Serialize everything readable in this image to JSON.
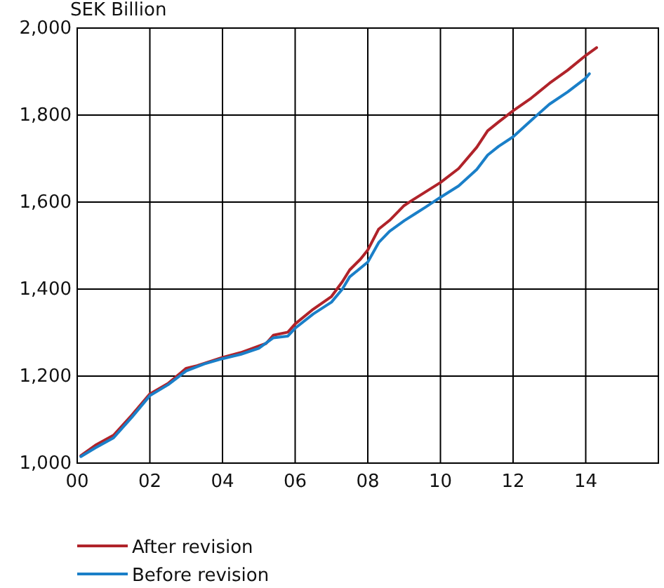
{
  "chart_data": {
    "type": "line",
    "ylabel": "SEK Billion",
    "xlim": [
      2000,
      2016
    ],
    "xticks": [
      {
        "value": 2000,
        "label": "00"
      },
      {
        "value": 2002,
        "label": "02"
      },
      {
        "value": 2004,
        "label": "04"
      },
      {
        "value": 2006,
        "label": "06"
      },
      {
        "value": 2008,
        "label": "08"
      },
      {
        "value": 2010,
        "label": "10"
      },
      {
        "value": 2012,
        "label": "12"
      },
      {
        "value": 2014,
        "label": "14"
      }
    ],
    "ylim": [
      1000,
      2000
    ],
    "yticks": [
      {
        "value": 1000,
        "label": "1,000"
      },
      {
        "value": 1200,
        "label": "1,200"
      },
      {
        "value": 1400,
        "label": "1,400"
      },
      {
        "value": 1600,
        "label": "1,600"
      },
      {
        "value": 1800,
        "label": "1,800"
      },
      {
        "value": 2000,
        "label": "2,000"
      }
    ],
    "grid": true,
    "legend": "bottom",
    "line_style": "solid",
    "marker": "none",
    "series": [
      {
        "name": "After revision",
        "color": "#b0232a",
        "x": [
          2000.1,
          2000.5,
          2001,
          2001.5,
          2002,
          2002.5,
          2003,
          2003.3,
          2003.6,
          2004,
          2004.5,
          2005,
          2005.2,
          2005.4,
          2005.8,
          2006,
          2006.5,
          2007,
          2007.3,
          2007.5,
          2007.8,
          2008,
          2008.3,
          2008.6,
          2009,
          2009.2,
          2009.6,
          2010,
          2010.5,
          2011,
          2011.3,
          2011.6,
          2012,
          2012.5,
          2013,
          2013.5,
          2014,
          2014.3
        ],
        "values": [
          1017,
          1041,
          1064,
          1110,
          1159,
          1183,
          1218,
          1224,
          1232,
          1243,
          1254,
          1269,
          1275,
          1294,
          1301,
          1320,
          1354,
          1383,
          1417,
          1444,
          1469,
          1490,
          1538,
          1558,
          1592,
          1603,
          1624,
          1645,
          1677,
          1726,
          1764,
          1784,
          1810,
          1839,
          1873,
          1903,
          1937,
          1955
        ]
      },
      {
        "name": "Before revision",
        "color": "#1a7fc8",
        "x": [
          2000.1,
          2000.5,
          2001,
          2001.5,
          2002,
          2002.5,
          2003,
          2003.5,
          2004,
          2004.5,
          2005,
          2005.4,
          2005.8,
          2006,
          2006.5,
          2007,
          2007.3,
          2007.5,
          2008,
          2008.3,
          2008.6,
          2009,
          2009.3,
          2009.6,
          2010,
          2010.5,
          2011,
          2011.3,
          2011.6,
          2012,
          2012.5,
          2013,
          2013.5,
          2014,
          2014.1
        ],
        "values": [
          1015,
          1035,
          1058,
          1105,
          1155,
          1180,
          1212,
          1228,
          1240,
          1250,
          1264,
          1288,
          1292,
          1310,
          1343,
          1370,
          1400,
          1428,
          1462,
          1507,
          1533,
          1557,
          1573,
          1589,
          1611,
          1637,
          1675,
          1708,
          1728,
          1750,
          1788,
          1825,
          1853,
          1885,
          1895
        ]
      }
    ]
  }
}
